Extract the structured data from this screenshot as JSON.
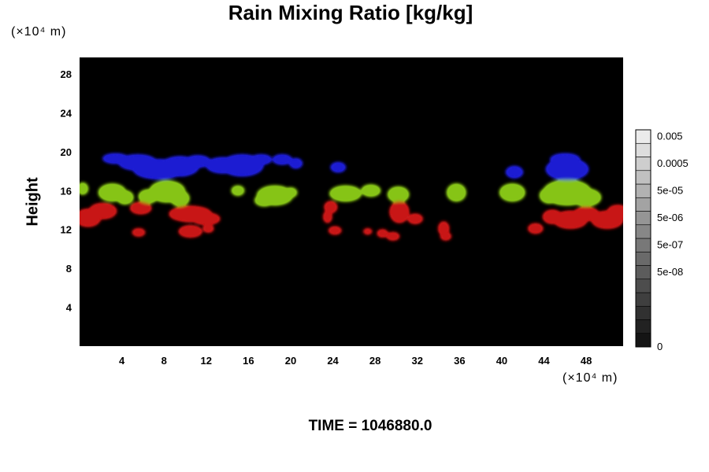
{
  "colors": {
    "background": "#ffffff",
    "plot_background": "#000000",
    "blue_cloud": "#1e1ed2",
    "green_cloud": "#86c418",
    "red_cloud": "#c81414"
  },
  "time_label": "TIME = 1046880.0",
  "chart_data": {
    "type": "heatmap",
    "title": "Rain Mixing Ratio [kg/kg]",
    "xlabel": "",
    "x_unit": "(×10⁴ m)",
    "ylabel": "Height",
    "y_unit": "(×10⁴ m)",
    "xlim": [
      0,
      51.5
    ],
    "ylim": [
      0,
      29.7
    ],
    "x_ticks": [
      4,
      8,
      12,
      16,
      20,
      24,
      28,
      32,
      36,
      40,
      44,
      48
    ],
    "y_ticks": [
      4,
      8,
      12,
      16,
      20,
      24,
      28
    ],
    "grid": false,
    "colorbar": {
      "levels": 16,
      "labels": [
        {
          "value": "0.005",
          "level": 15.5
        },
        {
          "value": "0.0005",
          "level": 13.5
        },
        {
          "value": "5e-05",
          "level": 11.5
        },
        {
          "value": "5e-06",
          "level": 9.5
        },
        {
          "value": "5e-07",
          "level": 7.5
        },
        {
          "value": "5e-08",
          "level": 5.5
        },
        {
          "value": "0",
          "level": 0
        }
      ]
    },
    "series": [
      {
        "color": "#1e1ed2",
        "blobs": [
          [
            3.4,
            19.3,
            1.2,
            0.5
          ],
          [
            5.5,
            18.9,
            1.8,
            0.8
          ],
          [
            7.5,
            18.2,
            2.4,
            1.0
          ],
          [
            9.5,
            18.5,
            1.8,
            1.0
          ],
          [
            11.2,
            19.0,
            1.2,
            0.6
          ],
          [
            13.6,
            18.6,
            1.6,
            0.8
          ],
          [
            15.4,
            18.6,
            2.0,
            1.1
          ],
          [
            17.2,
            19.2,
            1.0,
            0.5
          ],
          [
            19.2,
            19.2,
            0.9,
            0.5
          ],
          [
            20.5,
            18.8,
            0.6,
            0.5
          ],
          [
            24.5,
            18.4,
            0.7,
            0.5
          ],
          [
            41.2,
            17.9,
            0.8,
            0.6
          ],
          [
            46.2,
            18.2,
            2.0,
            1.1
          ],
          [
            46.0,
            19.2,
            1.4,
            0.6
          ]
        ]
      },
      {
        "color": "#86c418",
        "blobs": [
          [
            0.3,
            16.2,
            0.5,
            0.6
          ],
          [
            3.1,
            15.8,
            1.3,
            0.9
          ],
          [
            4.3,
            15.3,
            0.8,
            0.7
          ],
          [
            6.5,
            15.4,
            0.9,
            0.7
          ],
          [
            8.3,
            15.9,
            1.7,
            1.1
          ],
          [
            9.5,
            15.2,
            0.9,
            0.8
          ],
          [
            15.0,
            16.0,
            0.6,
            0.5
          ],
          [
            18.5,
            15.5,
            1.7,
            1.0
          ],
          [
            17.5,
            15.0,
            0.9,
            0.6
          ],
          [
            20.0,
            15.8,
            0.6,
            0.5
          ],
          [
            25.2,
            15.7,
            1.5,
            0.8
          ],
          [
            27.6,
            16.0,
            0.9,
            0.6
          ],
          [
            30.2,
            15.6,
            1.0,
            0.8
          ],
          [
            35.7,
            15.8,
            0.9,
            0.9
          ],
          [
            41.0,
            15.8,
            1.2,
            0.9
          ],
          [
            44.5,
            15.5,
            0.9,
            0.8
          ],
          [
            46.2,
            15.8,
            2.3,
            1.3
          ],
          [
            48.0,
            15.3,
            1.4,
            0.9
          ]
        ]
      },
      {
        "color": "#c81414",
        "blobs": [
          [
            0.8,
            13.2,
            1.2,
            0.9
          ],
          [
            2.2,
            13.9,
            1.3,
            0.8
          ],
          [
            5.8,
            14.2,
            1.0,
            0.6
          ],
          [
            10.5,
            13.6,
            2.0,
            0.8
          ],
          [
            12.0,
            13.1,
            1.3,
            0.6
          ],
          [
            10.5,
            11.8,
            1.1,
            0.6
          ],
          [
            12.2,
            12.1,
            0.5,
            0.4
          ],
          [
            5.6,
            11.7,
            0.6,
            0.4
          ],
          [
            23.8,
            14.3,
            0.6,
            0.6
          ],
          [
            23.5,
            13.3,
            0.4,
            0.6
          ],
          [
            24.2,
            11.9,
            0.6,
            0.4
          ],
          [
            27.3,
            11.8,
            0.4,
            0.3
          ],
          [
            28.7,
            11.6,
            0.5,
            0.4
          ],
          [
            29.7,
            11.3,
            0.6,
            0.4
          ],
          [
            30.3,
            13.8,
            0.9,
            1.1
          ],
          [
            31.8,
            13.1,
            0.7,
            0.5
          ],
          [
            34.5,
            12.1,
            0.5,
            0.7
          ],
          [
            34.7,
            11.3,
            0.5,
            0.4
          ],
          [
            43.2,
            12.1,
            0.7,
            0.5
          ],
          [
            44.8,
            13.3,
            0.9,
            0.7
          ],
          [
            46.5,
            13.0,
            1.6,
            0.9
          ],
          [
            48.0,
            13.6,
            1.2,
            0.7
          ],
          [
            50.0,
            13.0,
            1.5,
            0.9
          ],
          [
            51.0,
            13.8,
            1.0,
            0.7
          ]
        ]
      }
    ]
  }
}
